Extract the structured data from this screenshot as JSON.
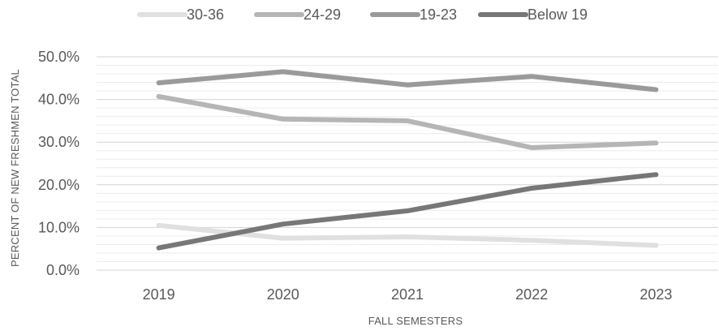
{
  "chart_data": {
    "type": "line",
    "categories": [
      "2019",
      "2020",
      "2021",
      "2022",
      "2023"
    ],
    "series": [
      {
        "name": "30-36",
        "color": "#e0e0e0",
        "values": [
          10.5,
          7.5,
          7.8,
          7.0,
          5.8
        ]
      },
      {
        "name": "24-29",
        "color": "#b5b5b5",
        "values": [
          40.7,
          35.4,
          35.0,
          28.7,
          29.8
        ]
      },
      {
        "name": "19-23",
        "color": "#9a9a9a",
        "values": [
          43.9,
          46.5,
          43.4,
          45.4,
          42.3
        ]
      },
      {
        "name": "Below 19",
        "color": "#777777",
        "values": [
          5.2,
          10.8,
          13.9,
          19.2,
          22.4
        ]
      }
    ],
    "xlabel": "FALL SEMESTERS",
    "ylabel": "PERCENT OF NEW FRESHMEN TOTAL",
    "ylim": [
      0,
      50
    ],
    "y_ticks": [
      "0.0%",
      "10.0%",
      "20.0%",
      "30.0%",
      "40.0%",
      "50.0%"
    ],
    "grid": true,
    "legend_position": "top"
  }
}
